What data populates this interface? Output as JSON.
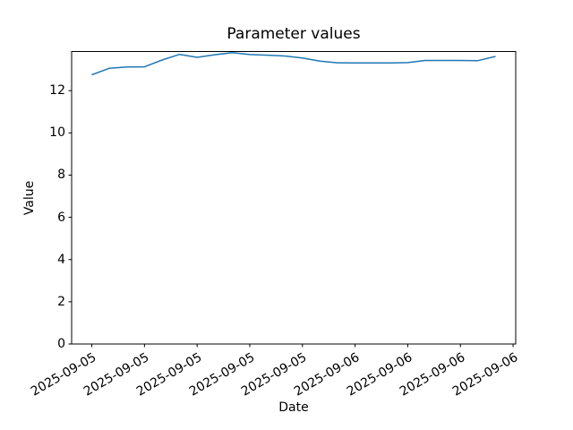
{
  "chart_data": {
    "type": "line",
    "title": "Parameter values",
    "xlabel": "Date",
    "ylabel": "Value",
    "grid": false,
    "legend_position": "none",
    "xlim": [
      -1.15,
      24.15
    ],
    "ylim": [
      0,
      13.85
    ],
    "x_unit": "hours (hourly samples from 2025-09-05 to 2025-09-06)",
    "x": [
      0,
      1,
      2,
      3,
      4,
      5,
      6,
      7,
      8,
      9,
      10,
      11,
      12,
      13,
      14,
      15,
      16,
      17,
      18,
      19,
      20,
      21,
      22,
      23
    ],
    "series": [
      {
        "name": "Parameter",
        "color": "#1f77b4",
        "values": [
          12.75,
          13.06,
          13.12,
          13.13,
          13.45,
          13.72,
          13.58,
          13.7,
          13.8,
          13.71,
          13.68,
          13.64,
          13.55,
          13.4,
          13.32,
          13.31,
          13.31,
          13.31,
          13.33,
          13.43,
          13.43,
          13.43,
          13.42,
          13.62
        ]
      }
    ],
    "x_tick_positions": [
      0,
      3,
      6,
      9,
      12,
      15,
      18,
      21,
      24
    ],
    "x_tick_labels": [
      "2025-09-05",
      "2025-09-05",
      "2025-09-05",
      "2025-09-05",
      "2025-09-05",
      "2025-09-06",
      "2025-09-06",
      "2025-09-06",
      "2025-09-06"
    ],
    "y_tick_values": [
      0,
      2,
      4,
      6,
      8,
      10,
      12
    ],
    "axis_color": "#000000",
    "background_color": "#ffffff"
  }
}
